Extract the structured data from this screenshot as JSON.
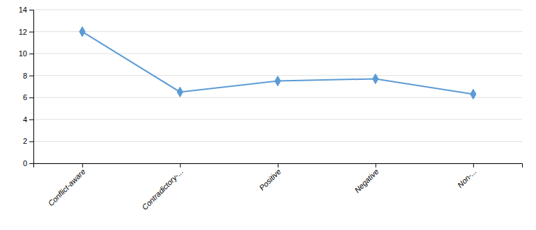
{
  "chart_data": {
    "type": "line",
    "categories": [
      "Conflict-aware",
      "Contradictory-...",
      "Positive",
      "Negative",
      "Non-..."
    ],
    "values": [
      12.0,
      6.5,
      7.5,
      7.7,
      6.3
    ],
    "color": "#5B9BD5",
    "marker": "diamond",
    "ylim": [
      0,
      14
    ],
    "yticks": [
      0,
      2,
      4,
      6,
      8,
      10,
      12,
      14
    ],
    "grid": true
  }
}
